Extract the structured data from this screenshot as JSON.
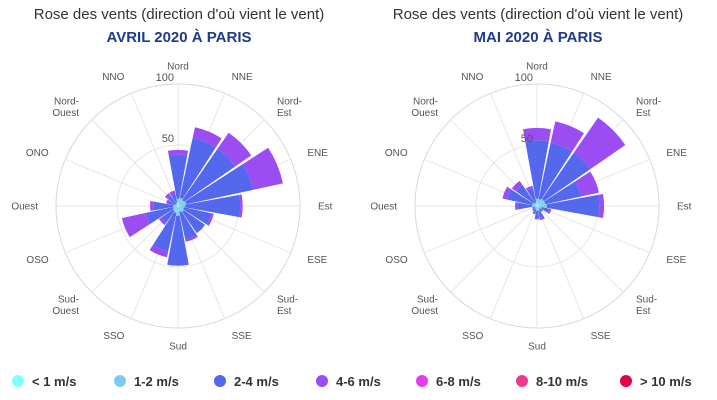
{
  "chart_data": [
    {
      "type": "windrose",
      "title": "Rose des vents (direction d'où vient le vent)",
      "subtitle": "AVRIL 2020 À PARIS",
      "directions": [
        "Nord",
        "NNE",
        "Nord-Est",
        "ENE",
        "Est",
        "ESE",
        "Sud-Est",
        "SSE",
        "Sud",
        "SSO",
        "Sud-Ouest",
        "OSO",
        "Ouest",
        "ONO",
        "Nord-Ouest",
        "NNO"
      ],
      "radial_ticks": [
        50,
        100
      ],
      "rmax": 100,
      "stacking": "normal",
      "series": [
        {
          "name": "< 1 m/s",
          "values": [
            3,
            2,
            1,
            1,
            1,
            1,
            1,
            1,
            1,
            1,
            1,
            1,
            1,
            1,
            0,
            1
          ]
        },
        {
          "name": "1-2 m/s",
          "values": [
            3,
            5,
            5,
            6,
            5,
            4,
            5,
            4,
            7,
            5,
            4,
            3,
            3,
            2,
            2,
            2
          ]
        },
        {
          "name": "2-4 m/s",
          "values": [
            36,
            50,
            51,
            56,
            45,
            23,
            21,
            23,
            41,
            32,
            12,
            23,
            16,
            5,
            8,
            7
          ]
        },
        {
          "name": "4-6 m/s",
          "values": [
            4,
            9,
            16,
            25,
            2,
            2,
            0,
            2,
            0,
            5,
            2,
            20,
            3,
            2,
            3,
            3
          ]
        },
        {
          "name": "6-8 m/s",
          "values": [
            0,
            0,
            0,
            0,
            0,
            0,
            0,
            0,
            0,
            0,
            0,
            0,
            0,
            0,
            0,
            0
          ]
        },
        {
          "name": "8-10 m/s",
          "values": [
            0,
            0,
            0,
            0,
            0,
            0,
            0,
            0,
            0,
            0,
            0,
            0,
            0,
            0,
            0,
            0
          ]
        },
        {
          "name": "> 10 m/s",
          "values": [
            0,
            0,
            0,
            0,
            0,
            0,
            0,
            0,
            0,
            0,
            0,
            0,
            0,
            0,
            0,
            0
          ]
        }
      ]
    },
    {
      "type": "windrose",
      "title": "Rose des vents (direction d'où vient le vent)",
      "subtitle": "MAI 2020 À PARIS",
      "directions": [
        "Nord",
        "NNE",
        "Nord-Est",
        "ENE",
        "Est",
        "ESE",
        "Sud-Est",
        "SSE",
        "Sud",
        "SSO",
        "Sud-Ouest",
        "OSO",
        "Ouest",
        "ONO",
        "Nord-Ouest",
        "NNO"
      ],
      "radial_ticks": [
        50,
        100
      ],
      "rmax": 100,
      "stacking": "normal",
      "series": [
        {
          "name": "< 1 m/s",
          "values": [
            3,
            2,
            2,
            2,
            1,
            1,
            1,
            1,
            1,
            0,
            0,
            0,
            1,
            1,
            1,
            1
          ]
        },
        {
          "name": "1-2 m/s",
          "values": [
            3,
            4,
            5,
            5,
            7,
            3,
            2,
            3,
            3,
            3,
            2,
            2,
            3,
            3,
            2,
            2
          ]
        },
        {
          "name": "2-4 m/s",
          "values": [
            48,
            47,
            46,
            30,
            43,
            6,
            3,
            6,
            6,
            3,
            2,
            1,
            12,
            21,
            18,
            12
          ]
        },
        {
          "name": "4-6 m/s",
          "values": [
            10,
            18,
            35,
            15,
            4,
            2,
            0,
            2,
            1,
            1,
            1,
            1,
            2,
            4,
            4,
            2
          ]
        },
        {
          "name": "6-8 m/s",
          "values": [
            0,
            0,
            0,
            0,
            0,
            0,
            0,
            0,
            0,
            0,
            0,
            0,
            0,
            0,
            0,
            0
          ]
        },
        {
          "name": "8-10 m/s",
          "values": [
            0,
            0,
            0,
            0,
            0,
            0,
            0,
            0,
            0,
            0,
            0,
            0,
            0,
            0,
            0,
            0
          ]
        },
        {
          "name": "> 10 m/s",
          "values": [
            0,
            0,
            0,
            0,
            0,
            0,
            0,
            0,
            0,
            0,
            0,
            0,
            0,
            0,
            0,
            0
          ]
        }
      ]
    }
  ],
  "legend": [
    {
      "label": "< 1 m/s",
      "color": "#7fffff"
    },
    {
      "label": "1-2 m/s",
      "color": "#7ecbf2"
    },
    {
      "label": "2-4 m/s",
      "color": "#5468ee"
    },
    {
      "label": "4-6 m/s",
      "color": "#9b4cf3"
    },
    {
      "label": "6-8 m/s",
      "color": "#e23ff0"
    },
    {
      "label": "8-10 m/s",
      "color": "#ee3a8c"
    },
    {
      "label": "> 10 m/s",
      "color": "#e50046"
    }
  ]
}
